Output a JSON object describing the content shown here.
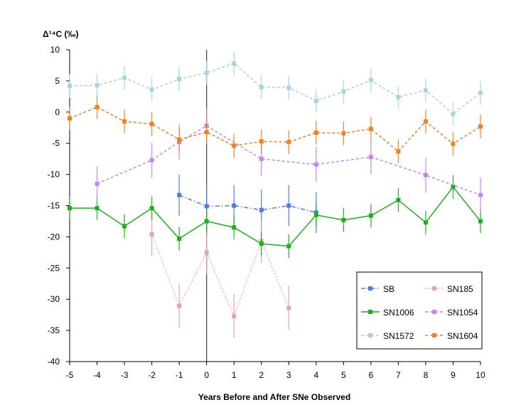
{
  "chart_data": {
    "type": "line",
    "title": "",
    "xlabel": "Years Before and After SNe Observed",
    "ylabel": "Δ¹⁴C (‰)",
    "xlim": [
      -5,
      10
    ],
    "ylim": [
      -40,
      10
    ],
    "x_ticks": [
      -5,
      -4,
      -3,
      -2,
      -1,
      0,
      1,
      2,
      3,
      4,
      5,
      6,
      7,
      8,
      9,
      10
    ],
    "x_tick_labels": [
      "-5",
      "-4",
      "-3",
      "-2",
      "-1",
      "0",
      "1",
      "2",
      "3",
      "4",
      "5",
      "6",
      "7",
      "8",
      "9",
      "10"
    ],
    "y_ticks": [
      -40,
      -35,
      -30,
      -25,
      -20,
      -15,
      -10,
      -5,
      0,
      5,
      10
    ],
    "y_tick_labels": [
      "-40",
      "-35",
      "-30",
      "-25",
      "-20",
      "-15",
      "-10",
      "-5",
      "0",
      "5",
      "10"
    ],
    "reference_lines_x": [
      0
    ],
    "grid": false,
    "legend_position": "bottom-right",
    "series": [
      {
        "name": "SB",
        "color": "#4a7ee0",
        "dash": "dashdot",
        "marker": "square",
        "x": [
          -1,
          0,
          1,
          2,
          3,
          4
        ],
        "y": [
          -13.3,
          -15.1,
          -15.0,
          -15.7,
          -15.0,
          -16.1
        ],
        "err": [
          3.3,
          3.3,
          3.3,
          3.3,
          3.3,
          3.3
        ]
      },
      {
        "name": "SN185",
        "color": "#e4a5a3",
        "dash": "dotted",
        "marker": "square",
        "x": [
          -2,
          -1,
          0,
          1,
          2,
          3
        ],
        "y": [
          -19.6,
          -31.1,
          -22.5,
          -32.7,
          -20.7,
          -31.4
        ],
        "err": [
          3.5,
          3.5,
          3.5,
          3.5,
          3.5,
          3.5
        ]
      },
      {
        "name": "SN1006",
        "color": "#1ab01a",
        "dash": "solid",
        "marker": "square",
        "x": [
          -5,
          -4,
          -3,
          -2,
          -1,
          0,
          1,
          2,
          3,
          4,
          5,
          6,
          7,
          8,
          9,
          10
        ],
        "y": [
          -15.4,
          -15.4,
          -18.3,
          -15.4,
          -20.3,
          -17.5,
          -18.5,
          -21.1,
          -21.5,
          -16.5,
          -17.3,
          -16.6,
          -14.1,
          -17.7,
          -12.0,
          -17.5
        ],
        "err": [
          1.9,
          1.9,
          1.9,
          1.9,
          1.9,
          1.9,
          1.9,
          1.9,
          1.9,
          1.9,
          1.9,
          1.9,
          1.9,
          1.9,
          1.9,
          1.9
        ]
      },
      {
        "name": "SN1054",
        "color": "#c586f0",
        "dash": "dashed",
        "marker": "square",
        "x": [
          -4,
          -2,
          -1,
          0,
          2,
          4,
          6,
          8,
          10
        ],
        "y": [
          -11.5,
          -7.7,
          -4.8,
          -2.2,
          -7.5,
          -8.4,
          -7.2,
          -10.1,
          -13.3
        ],
        "err": [
          2.8,
          2.8,
          2.8,
          2.8,
          2.8,
          2.8,
          2.8,
          2.8,
          2.8
        ]
      },
      {
        "name": "SN1572",
        "color": "#a6d4e4",
        "dash": "dashed",
        "marker": "square",
        "x": [
          -5,
          -4,
          -3,
          -2,
          -1,
          0,
          1,
          2,
          3,
          4,
          5,
          6,
          7,
          8,
          9,
          10
        ],
        "y": [
          4.2,
          4.3,
          5.5,
          3.6,
          5.3,
          6.3,
          7.8,
          4.0,
          3.9,
          1.8,
          3.3,
          5.1,
          2.4,
          3.5,
          -0.3,
          3.1
        ],
        "err": [
          1.9,
          1.9,
          1.9,
          1.9,
          1.9,
          1.9,
          1.9,
          1.9,
          1.9,
          1.9,
          1.9,
          1.9,
          1.9,
          1.9,
          1.9,
          1.9
        ]
      },
      {
        "name": "SN1604",
        "color": "#f08020",
        "dash": "dashed",
        "marker": "square",
        "x": [
          -5,
          -4,
          -3,
          -2,
          -1,
          0,
          1,
          2,
          3,
          4,
          5,
          6,
          7,
          8,
          9,
          10
        ],
        "y": [
          -1.0,
          0.8,
          -1.5,
          -1.9,
          -4.4,
          -3.2,
          -5.4,
          -4.7,
          -4.8,
          -3.3,
          -3.4,
          -2.7,
          -6.3,
          -1.5,
          -5.1,
          -2.3
        ],
        "err": [
          1.9,
          1.9,
          1.9,
          1.9,
          1.9,
          1.9,
          1.9,
          1.9,
          1.9,
          1.9,
          1.9,
          1.9,
          1.9,
          1.9,
          1.9,
          1.9
        ]
      }
    ]
  }
}
